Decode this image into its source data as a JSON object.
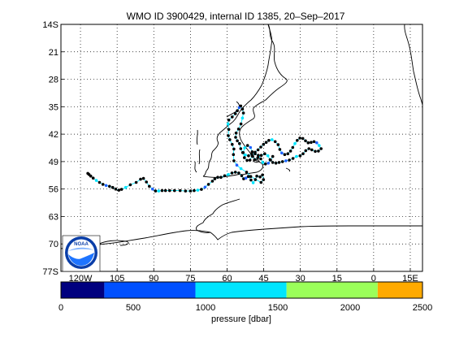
{
  "title": "WMO ID 3900429, internal ID 1385, 20–Sep–2017",
  "map": {
    "lat_ticks": [
      "14S",
      "21",
      "28",
      "35",
      "42",
      "49",
      "56",
      "63",
      "70",
      "77S"
    ],
    "lon_ticks": [
      "120W",
      "105",
      "90",
      "75",
      "60",
      "45",
      "30",
      "15",
      "0",
      "15E"
    ],
    "lat_range": [
      -14,
      -77
    ],
    "lon_range": [
      -128,
      20
    ],
    "grid": true,
    "coast_color": "#000000",
    "grid_color": "#000000",
    "logo": {
      "text": "NOAA",
      "icon": "noaa-logo-icon"
    },
    "track_colors": [
      "#00E5FF",
      "#2060FF",
      "#000000"
    ],
    "track_points": [
      [
        -117,
        -52.0
      ],
      [
        -116.5,
        -52.3
      ],
      [
        -115.8,
        -52.7
      ],
      [
        -114.8,
        -53.2
      ],
      [
        -113.5,
        -53.8
      ],
      [
        -112.2,
        -54.3
      ],
      [
        -110.8,
        -54.8
      ],
      [
        -109.5,
        -55.1
      ],
      [
        -108.1,
        -55.3
      ],
      [
        -106.8,
        -55.6
      ],
      [
        -105.6,
        -56.0
      ],
      [
        -104.3,
        -56.3
      ],
      [
        -103.2,
        -56.1
      ],
      [
        -101.5,
        -55.6
      ],
      [
        -99.6,
        -54.9
      ],
      [
        -97.2,
        -54.3
      ],
      [
        -95.4,
        -53.5
      ],
      [
        -94.2,
        -53.3
      ],
      [
        -93.0,
        -54.2
      ],
      [
        -91.8,
        -55.3
      ],
      [
        -90.5,
        -56.0
      ],
      [
        -89.3,
        -56.5
      ],
      [
        -88.0,
        -56.5
      ],
      [
        -86.6,
        -56.4
      ],
      [
        -85.2,
        -56.4
      ],
      [
        -83.5,
        -56.4
      ],
      [
        -81.5,
        -56.4
      ],
      [
        -79.2,
        -56.4
      ],
      [
        -77.0,
        -56.5
      ],
      [
        -75.0,
        -56.5
      ],
      [
        -73.5,
        -56.4
      ],
      [
        -72.0,
        -56.3
      ],
      [
        -70.5,
        -56.1
      ],
      [
        -69.0,
        -55.5
      ],
      [
        -67.6,
        -54.8
      ],
      [
        -66.0,
        -54.0
      ],
      [
        -65.0,
        -53.4
      ],
      [
        -63.8,
        -53.0
      ],
      [
        -62.5,
        -53.0
      ],
      [
        -61.0,
        -52.6
      ],
      [
        -59.5,
        -52.3
      ],
      [
        -58.0,
        -51.9
      ],
      [
        -56.6,
        -51.7
      ],
      [
        -55.2,
        -51.9
      ],
      [
        -54.0,
        -52.6
      ],
      [
        -53.2,
        -53.4
      ],
      [
        -52.3,
        -53.2
      ],
      [
        -51.3,
        -52.8
      ],
      [
        -50.2,
        -53.7
      ],
      [
        -49.3,
        -54.4
      ],
      [
        -48.4,
        -53.6
      ],
      [
        -47.8,
        -52.7
      ],
      [
        -46.5,
        -52.9
      ],
      [
        -45.5,
        -52.4
      ],
      [
        -45.1,
        -53.6
      ],
      [
        -46.1,
        -54.3
      ],
      [
        -50.3,
        -52.8
      ],
      [
        -52.0,
        -51.7
      ],
      [
        -54.3,
        -50.8
      ],
      [
        -56.0,
        -49.9
      ],
      [
        -57.2,
        -48.8
      ],
      [
        -57.4,
        -47.2
      ],
      [
        -57.2,
        -45.8
      ],
      [
        -57.9,
        -44.6
      ],
      [
        -58.9,
        -43.4
      ],
      [
        -59.5,
        -42.4
      ],
      [
        -59.3,
        -40.8
      ],
      [
        -59.6,
        -39.4
      ],
      [
        -59.3,
        -38.4
      ],
      [
        -57.9,
        -37.6
      ],
      [
        -56.6,
        -36.8
      ],
      [
        -55.8,
        -36.0
      ],
      [
        -55.0,
        -35.2
      ],
      [
        -54.4,
        -34.8
      ],
      [
        -53.7,
        -35.6
      ],
      [
        -53.3,
        -36.6
      ],
      [
        -53.7,
        -37.9
      ],
      [
        -54.3,
        -39.4
      ],
      [
        -55.3,
        -40.7
      ],
      [
        -56.3,
        -41.7
      ],
      [
        -56.5,
        -42.8
      ],
      [
        -55.8,
        -43.7
      ],
      [
        -54.9,
        -44.4
      ],
      [
        -54.4,
        -45.7
      ],
      [
        -53.6,
        -46.7
      ],
      [
        -52.5,
        -47.3
      ],
      [
        -51.2,
        -47.5
      ],
      [
        -49.9,
        -47.0
      ],
      [
        -48.5,
        -46.6
      ],
      [
        -47.3,
        -46.0
      ],
      [
        -46.2,
        -45.3
      ],
      [
        -45.1,
        -44.6
      ],
      [
        -44.0,
        -44.1
      ],
      [
        -42.9,
        -43.6
      ],
      [
        -41.6,
        -43.4
      ],
      [
        -40.3,
        -43.9
      ],
      [
        -39.1,
        -44.7
      ],
      [
        -38.4,
        -45.9
      ],
      [
        -37.6,
        -46.8
      ],
      [
        -36.4,
        -47.2
      ],
      [
        -35.1,
        -47.0
      ],
      [
        -34.0,
        -46.3
      ],
      [
        -33.1,
        -45.4
      ],
      [
        -32.2,
        -44.4
      ],
      [
        -31.3,
        -43.6
      ],
      [
        -30.2,
        -43.0
      ],
      [
        -29.0,
        -43.1
      ],
      [
        -27.9,
        -43.7
      ],
      [
        -26.8,
        -44.2
      ],
      [
        -25.6,
        -44.1
      ],
      [
        -24.4,
        -43.9
      ],
      [
        -23.3,
        -44.2
      ],
      [
        -22.3,
        -44.9
      ],
      [
        -21.5,
        -45.7
      ],
      [
        -22.6,
        -46.3
      ],
      [
        -23.9,
        -46.4
      ],
      [
        -25.3,
        -46.0
      ],
      [
        -26.5,
        -45.7
      ],
      [
        -27.8,
        -46.2
      ],
      [
        -28.9,
        -47.0
      ],
      [
        -30.1,
        -47.5
      ],
      [
        -31.6,
        -47.7
      ],
      [
        -33.0,
        -48.2
      ],
      [
        -34.5,
        -48.6
      ],
      [
        -35.9,
        -48.8
      ],
      [
        -37.3,
        -49.0
      ],
      [
        -38.7,
        -49.2
      ],
      [
        -40.0,
        -49.4
      ],
      [
        -41.3,
        -49.2
      ],
      [
        -42.4,
        -48.5
      ],
      [
        -43.3,
        -47.5
      ],
      [
        -44.6,
        -47.0
      ],
      [
        -46.0,
        -47.4
      ],
      [
        -47.4,
        -48.0
      ],
      [
        -48.6,
        -48.5
      ],
      [
        -49.5,
        -47.7
      ],
      [
        -49.7,
        -46.5
      ],
      [
        -50.4,
        -45.4
      ],
      [
        -51.6,
        -44.9
      ],
      [
        -52.8,
        -45.5
      ],
      [
        -53.4,
        -46.7
      ],
      [
        -52.9,
        -48.0
      ],
      [
        -51.8,
        -48.7
      ],
      [
        -50.6,
        -48.6
      ],
      [
        -49.7,
        -47.5
      ],
      [
        -48.5,
        -47.0
      ],
      [
        -47.2,
        -47.4
      ],
      [
        -46.2,
        -48.3
      ],
      [
        -45.4,
        -49.2
      ],
      [
        -44.3,
        -49.6
      ],
      [
        -43.1,
        -49.4
      ],
      [
        -42.2,
        -48.6
      ],
      [
        -41.3,
        -47.7
      ]
    ]
  },
  "colorbar": {
    "label": "pressure [dbar]",
    "ticks": [
      "0",
      "500",
      "1000",
      "1500",
      "2000",
      "2500"
    ],
    "range": [
      0,
      2500
    ],
    "segments": [
      {
        "from": 0,
        "to": 300,
        "color": "#00007F"
      },
      {
        "from": 300,
        "to": 930,
        "color": "#0050FF"
      },
      {
        "from": 930,
        "to": 1560,
        "color": "#00E5FF"
      },
      {
        "from": 1560,
        "to": 2190,
        "color": "#9BFF5A"
      },
      {
        "from": 2190,
        "to": 2500,
        "color": "#FFAA00"
      }
    ]
  }
}
